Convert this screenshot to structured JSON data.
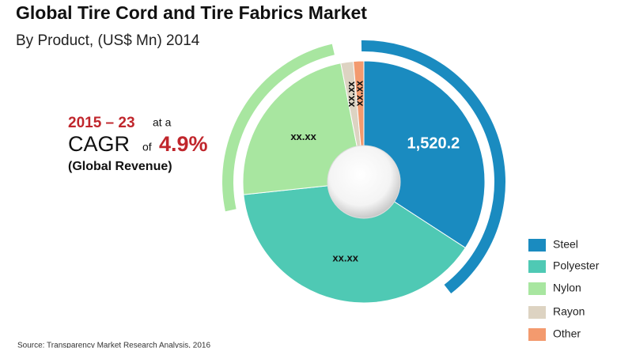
{
  "chart_data": {
    "type": "donut",
    "title": "Global Tire Cord and Tire Fabrics Market",
    "subtitle": "By Product, (US$ Mn) 2014",
    "categories": [
      "Steel",
      "Polyester",
      "Nylon",
      "Rayon",
      "Other"
    ],
    "values": [
      1520.2,
      1742,
      1051,
      74,
      62
    ],
    "value_labels": [
      "1,520.2",
      "xx.xx",
      "xx.xx",
      "xx.xx",
      "xx.xx"
    ],
    "colors": [
      "#1a8bc0",
      "#4fc9b4",
      "#a8e6a0",
      "#ddd3c2",
      "#f39a6e"
    ],
    "legend": "bottom-right",
    "cagr": {
      "period": "2015 – 23",
      "at": "at a",
      "label": "CAGR",
      "of": "of",
      "rate": "4.9%",
      "note": "(Global Revenue)"
    },
    "source": "Source: Transparency Market Research Analysis, 2016"
  }
}
